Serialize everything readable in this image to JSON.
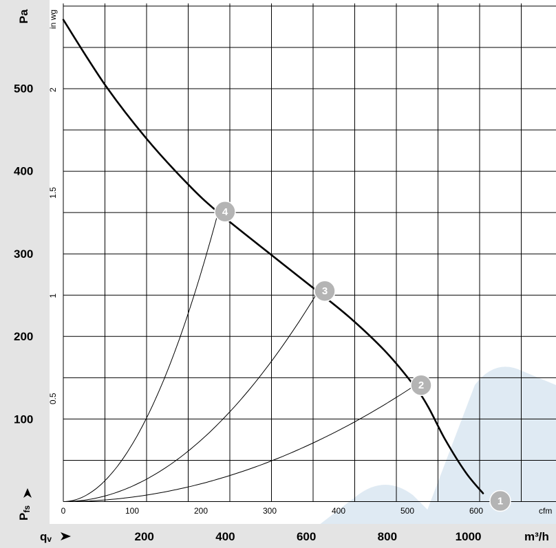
{
  "chart_data": {
    "type": "line",
    "title": "",
    "axes": {
      "y_left": {
        "unit": "Pa",
        "symbol": "Pfs",
        "ticks": [
          100,
          200,
          300,
          400,
          500
        ],
        "range": [
          0,
          583
        ]
      },
      "y_inner": {
        "unit": "in wg",
        "ticks": [
          "0.5",
          "1",
          "1.5",
          "2"
        ],
        "tick_values": [
          0.5,
          1,
          1.5,
          2
        ]
      },
      "x_bottom": {
        "unit": "m³/h",
        "symbol": "qv",
        "ticks": [
          200,
          400,
          600,
          800,
          1000
        ]
      },
      "x_inner": {
        "unit": "cfm",
        "ticks": [
          0,
          100,
          200,
          300,
          400,
          500,
          600
        ],
        "range": [
          0,
          700
        ]
      }
    },
    "grid": true,
    "series": [
      {
        "role": "fan-curve",
        "x_cfm": [
          0,
          60,
          120,
          180,
          225,
          300,
          370,
          420,
          470,
          510,
          530,
          555,
          585,
          610
        ],
        "y_pa": [
          583,
          505,
          440,
          385,
          350,
          300,
          254,
          220,
          180,
          140,
          115,
          75,
          35,
          10
        ]
      },
      {
        "role": "system-curve",
        "operating_point": "4",
        "x_cfm": [
          0,
          225
        ],
        "y_pa": [
          0,
          350
        ]
      },
      {
        "role": "system-curve",
        "operating_point": "3",
        "x_cfm": [
          0,
          370
        ],
        "y_pa": [
          0,
          254
        ]
      },
      {
        "role": "system-curve",
        "operating_point": "2",
        "x_cfm": [
          0,
          510
        ],
        "y_pa": [
          0,
          140
        ]
      }
    ],
    "operating_points": [
      {
        "label": "1",
        "x_cfm": 625,
        "y_pa": 0
      },
      {
        "label": "2",
        "x_cfm": 510,
        "y_pa": 140
      },
      {
        "label": "3",
        "x_cfm": 370,
        "y_pa": 254
      },
      {
        "label": "4",
        "x_cfm": 225,
        "y_pa": 350
      }
    ]
  }
}
